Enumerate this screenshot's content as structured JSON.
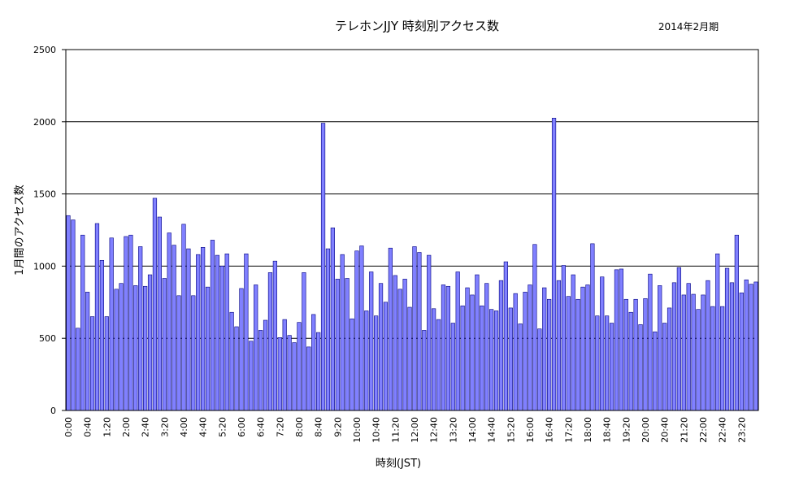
{
  "chart_data": {
    "type": "bar",
    "title": "テレホンJJY 時刻別アクセス数",
    "subtitle": "2014年2月期",
    "xlabel": "時刻(JST)",
    "ylabel": "1月間のアクセス数",
    "ylim": [
      0,
      2500
    ],
    "yticks": [
      "0",
      "500",
      "1000",
      "1500",
      "2000",
      "2500"
    ],
    "grid": "horizontal",
    "colors": {
      "bar_fill": "#8080ff",
      "bar_stroke": "#000080"
    },
    "categories": [
      "0:00",
      "0:10",
      "0:20",
      "0:30",
      "0:40",
      "0:50",
      "1:00",
      "1:10",
      "1:20",
      "1:30",
      "1:40",
      "1:50",
      "2:00",
      "2:10",
      "2:20",
      "2:30",
      "2:40",
      "2:50",
      "3:00",
      "3:10",
      "3:20",
      "3:30",
      "3:40",
      "3:50",
      "4:00",
      "4:10",
      "4:20",
      "4:30",
      "4:40",
      "4:50",
      "5:00",
      "5:10",
      "5:20",
      "5:30",
      "5:40",
      "5:50",
      "6:00",
      "6:10",
      "6:20",
      "6:30",
      "6:40",
      "6:50",
      "7:00",
      "7:10",
      "7:20",
      "7:30",
      "7:40",
      "7:50",
      "8:00",
      "8:10",
      "8:20",
      "8:30",
      "8:40",
      "8:50",
      "9:00",
      "9:10",
      "9:20",
      "9:30",
      "9:40",
      "9:50",
      "10:00",
      "10:10",
      "10:20",
      "10:30",
      "10:40",
      "10:50",
      "11:00",
      "11:10",
      "11:20",
      "11:30",
      "11:40",
      "11:50",
      "12:00",
      "12:10",
      "12:20",
      "12:30",
      "12:40",
      "12:50",
      "13:00",
      "13:10",
      "13:20",
      "13:30",
      "13:40",
      "13:50",
      "14:00",
      "14:10",
      "14:20",
      "14:30",
      "14:40",
      "14:50",
      "15:00",
      "15:10",
      "15:20",
      "15:30",
      "15:40",
      "15:50",
      "16:00",
      "16:10",
      "16:20",
      "16:30",
      "16:40",
      "16:50",
      "17:00",
      "17:10",
      "17:20",
      "17:30",
      "17:40",
      "17:50",
      "18:00",
      "18:10",
      "18:20",
      "18:30",
      "18:40",
      "18:50",
      "19:00",
      "19:10",
      "19:20",
      "19:30",
      "19:40",
      "19:50",
      "20:00",
      "20:10",
      "20:20",
      "20:30",
      "20:40",
      "20:50",
      "21:00",
      "21:10",
      "21:20",
      "21:30",
      "21:40",
      "21:50",
      "22:00",
      "22:10",
      "22:20",
      "22:30",
      "22:40",
      "22:50",
      "23:00",
      "23:10",
      "23:20",
      "23:30",
      "23:40",
      "23:50"
    ],
    "xtick_labels": [
      "0:00",
      "0:40",
      "1:20",
      "2:00",
      "2:40",
      "3:20",
      "4:00",
      "4:40",
      "5:20",
      "6:00",
      "6:40",
      "7:20",
      "8:00",
      "8:40",
      "9:20",
      "10:00",
      "10:40",
      "11:20",
      "12:00",
      "12:40",
      "13:20",
      "14:00",
      "14:40",
      "15:20",
      "16:00",
      "16:40",
      "17:20",
      "18:00",
      "18:40",
      "19:20",
      "20:00",
      "20:40",
      "21:20",
      "22:00",
      "22:40",
      "23:20"
    ],
    "values": [
      1350,
      1320,
      570,
      1215,
      820,
      650,
      1295,
      1040,
      650,
      1195,
      840,
      880,
      1205,
      1215,
      865,
      1135,
      860,
      940,
      1470,
      1340,
      915,
      1230,
      1145,
      795,
      1290,
      1120,
      795,
      1080,
      1130,
      855,
      1180,
      1075,
      1000,
      1085,
      680,
      580,
      845,
      1085,
      480,
      870,
      555,
      625,
      955,
      1035,
      505,
      630,
      520,
      470,
      610,
      955,
      440,
      665,
      540,
      1990,
      1120,
      1265,
      910,
      1080,
      915,
      635,
      1105,
      1140,
      690,
      960,
      655,
      880,
      750,
      1125,
      935,
      840,
      910,
      715,
      1135,
      1095,
      555,
      1075,
      705,
      630,
      870,
      860,
      605,
      960,
      725,
      850,
      800,
      940,
      725,
      880,
      700,
      690,
      900,
      1030,
      710,
      810,
      600,
      820,
      870,
      1150,
      565,
      850,
      770,
      2025,
      900,
      1005,
      790,
      940,
      770,
      855,
      870,
      1155,
      655,
      925,
      655,
      605,
      975,
      980,
      770,
      680,
      770,
      595,
      775,
      945,
      545,
      865,
      605,
      710,
      885,
      990,
      800,
      880,
      805,
      700,
      800,
      900,
      720,
      1085,
      720,
      985,
      885,
      1215,
      815,
      905,
      875,
      890
    ]
  }
}
